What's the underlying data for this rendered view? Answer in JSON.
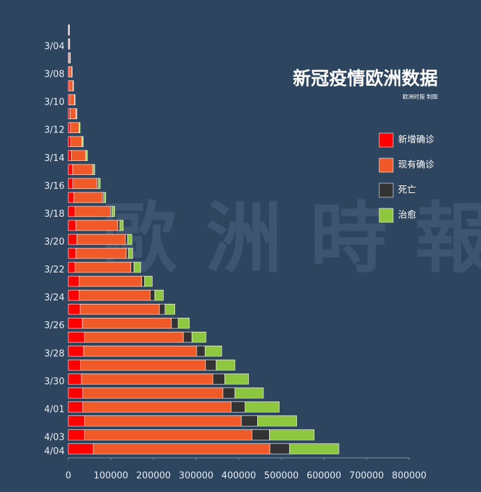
{
  "chart_data": {
    "type": "stacked-bar-horizontal",
    "title": "新冠疫情欧洲数据",
    "subtitle": "欧洲时报 制图",
    "watermark": "歐洲時報",
    "categories": [
      null,
      "3/04",
      null,
      "3/08",
      null,
      "3/10",
      null,
      "3/12",
      null,
      "3/14",
      null,
      "3/16",
      null,
      "3/18",
      null,
      "3/20",
      null,
      "3/22",
      null,
      "3/24",
      null,
      "3/26",
      null,
      "3/28",
      null,
      "3/30",
      null,
      "4/01",
      null,
      "4/03",
      "4/04"
    ],
    "series": [
      {
        "name": "新增确诊",
        "color": "#ff0000",
        "values": [
          1000,
          1200,
          1500,
          2000,
          3000,
          3500,
          4000,
          5000,
          6000,
          7000,
          10000,
          11000,
          13000,
          16000,
          18000,
          20000,
          18000,
          16000,
          25000,
          25000,
          28000,
          33000,
          38000,
          36000,
          29000,
          31000,
          34000,
          34000,
          38000,
          38000,
          59000
        ]
      },
      {
        "name": "现有确诊",
        "color": "#f05a28",
        "values": [
          1000,
          1500,
          2500,
          6000,
          8000,
          11000,
          14000,
          20000,
          26000,
          34000,
          47000,
          56000,
          67000,
          83000,
          98000,
          114000,
          118000,
          131000,
          147000,
          167000,
          186000,
          209000,
          232000,
          265000,
          293000,
          308000,
          329000,
          348000,
          368000,
          393000,
          414000
        ]
      },
      {
        "name": "死亡",
        "color": "#333333",
        "values": [
          100,
          100,
          200,
          300,
          300,
          400,
          500,
          700,
          900,
          1200,
          2000,
          3000,
          3000,
          3000,
          5000,
          5000,
          5000,
          7000,
          7000,
          11000,
          13000,
          16000,
          20000,
          20000,
          25000,
          28000,
          28000,
          33000,
          38000,
          41000,
          46000
        ]
      },
      {
        "name": "治愈",
        "color": "#8dc63f",
        "values": [
          500,
          500,
          600,
          800,
          1000,
          1200,
          1500,
          2000,
          2000,
          2500,
          3000,
          5000,
          5000,
          7000,
          8000,
          10000,
          10000,
          16000,
          18000,
          20000,
          23000,
          26000,
          33000,
          39000,
          44000,
          56000,
          67000,
          80000,
          92000,
          105000,
          116000
        ]
      }
    ],
    "xlim": [
      0,
      800000
    ],
    "xticks": [
      0,
      100000,
      200000,
      300000,
      400000,
      500000,
      600000,
      700000,
      800000
    ]
  }
}
